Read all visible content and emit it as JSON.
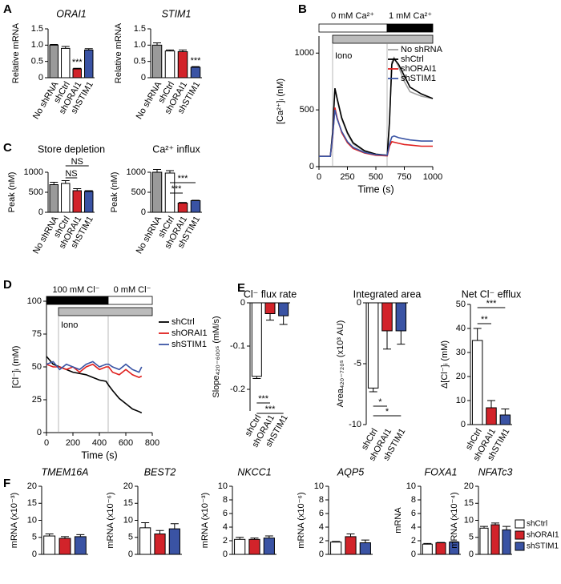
{
  "chart_data": [
    {
      "type": "bar",
      "panel": "A",
      "title": "ORAI1",
      "y_label": "Relative mRNA",
      "categories": [
        "No shRNA",
        "shCtrl",
        "shORAI1",
        "shSTIM1"
      ],
      "values": [
        1.0,
        0.9,
        0.27,
        0.85
      ],
      "errors": [
        0.02,
        0.06,
        0.02,
        0.04
      ],
      "colors": [
        "#9a9a9a",
        "#ffffff",
        "#d2232a",
        "#3a53a4"
      ],
      "ylim": [
        0,
        1.5
      ],
      "yticks": [
        0,
        0.5,
        {
          "value": 1,
          "label": "1.0"
        },
        1.5
      ],
      "annotations": [
        "***"
      ]
    },
    {
      "type": "bar",
      "title": "STIM1",
      "y_label": "Relative mRNA",
      "categories": [
        "No shRNA",
        "shCtrl",
        "shORAI1",
        "shSTIM1"
      ],
      "values": [
        1.0,
        0.82,
        0.8,
        0.32
      ],
      "errors": [
        0.07,
        0.03,
        0.05,
        0.02
      ],
      "colors": [
        "#9a9a9a",
        "#ffffff",
        "#d2232a",
        "#3a53a4"
      ],
      "ylim": [
        0,
        1.5
      ],
      "yticks": [
        0,
        0.5,
        {
          "value": 1,
          "label": "1.0"
        },
        1.5
      ],
      "annotations": [
        "***"
      ]
    },
    {
      "type": "line",
      "panel": "B",
      "x_label": "Time (s)",
      "y_label": "[Ca²⁺]ᵢ (nM)",
      "stimuli": [
        "0 mM Ca²⁺",
        "1 mM Ca²⁺",
        "Iono"
      ],
      "x": [
        0,
        50,
        100,
        120,
        140,
        160,
        200,
        250,
        300,
        400,
        500,
        600,
        620,
        640,
        660,
        700,
        750,
        800,
        900,
        1000
      ],
      "series": [
        {
          "name": "No shRNA",
          "color": "#a0a0a0",
          "values": [
            90,
            90,
            90,
            300,
            680,
            590,
            420,
            290,
            200,
            135,
            105,
            100,
            380,
            920,
            960,
            880,
            750,
            660,
            620,
            600
          ]
        },
        {
          "name": "shCtrl",
          "color": "#000000",
          "values": [
            90,
            90,
            90,
            300,
            690,
            600,
            430,
            300,
            210,
            140,
            110,
            100,
            400,
            900,
            950,
            900,
            800,
            700,
            640,
            600
          ]
        },
        {
          "name": "shORAI1",
          "color": "#e0201e",
          "values": [
            90,
            90,
            90,
            250,
            520,
            430,
            300,
            210,
            160,
            120,
            100,
            95,
            180,
            220,
            215,
            205,
            195,
            190,
            180,
            180
          ]
        },
        {
          "name": "shSTIM1",
          "color": "#3b55a5",
          "values": [
            90,
            90,
            90,
            260,
            500,
            420,
            310,
            220,
            170,
            125,
            105,
            100,
            200,
            260,
            270,
            255,
            245,
            235,
            225,
            225
          ]
        }
      ],
      "xlim": [
        0,
        1000
      ],
      "xticks": [
        0,
        250,
        500,
        750,
        1000
      ],
      "ylim": [
        0,
        1150
      ],
      "yticks": [
        0,
        500,
        1000
      ]
    },
    {
      "type": "bar",
      "panel": "C",
      "title": "Store depletion",
      "y_label": "Peak (nM)",
      "categories": [
        "No shRNA",
        "shCtrl",
        "shORAI1",
        "shSTIM1"
      ],
      "values": [
        690,
        720,
        540,
        520
      ],
      "errors": [
        60,
        70,
        50,
        20
      ],
      "colors": [
        "#9a9a9a",
        "#ffffff",
        "#d2232a",
        "#3a53a4"
      ],
      "ylim": [
        0,
        1000
      ],
      "yticks": [
        0,
        500,
        1000
      ],
      "annotations": [
        "NS",
        "NS"
      ]
    },
    {
      "type": "bar",
      "title": "Ca²⁺ influx",
      "y_label": "Peak (nM)",
      "categories": [
        "No shRNA",
        "shCtrl",
        "shORAI1",
        "shSTIM1"
      ],
      "values": [
        1000,
        980,
        230,
        290
      ],
      "errors": [
        70,
        60,
        15,
        10
      ],
      "colors": [
        "#9a9a9a",
        "#ffffff",
        "#d2232a",
        "#3a53a4"
      ],
      "ylim": [
        0,
        1000
      ],
      "yticks": [
        0,
        500,
        1000
      ],
      "annotations": [
        "***",
        "***"
      ]
    },
    {
      "type": "line",
      "panel": "D",
      "x_label": "Time (s)",
      "y_label": "[Cl⁻]ᵢ (mM)",
      "stimuli": [
        "100 mM Cl⁻",
        "0 mM Cl⁻",
        "Iono"
      ],
      "x": [
        0,
        50,
        100,
        150,
        200,
        250,
        300,
        350,
        400,
        450,
        470,
        500,
        550,
        600,
        650,
        700,
        720
      ],
      "series": [
        {
          "name": "shCtrl",
          "color": "#000000",
          "values": [
            58,
            52,
            50,
            48,
            46,
            45,
            44,
            42,
            40,
            39,
            36,
            32,
            26,
            22,
            18,
            16,
            15
          ]
        },
        {
          "name": "shORAI1",
          "color": "#e0201e",
          "values": [
            52,
            50,
            50,
            48,
            50,
            46,
            50,
            52,
            48,
            50,
            50,
            46,
            44,
            48,
            44,
            42,
            43
          ]
        },
        {
          "name": "shSTIM1",
          "color": "#3b55a5",
          "values": [
            52,
            54,
            48,
            52,
            50,
            48,
            52,
            54,
            50,
            52,
            52,
            50,
            48,
            52,
            48,
            46,
            50
          ]
        }
      ],
      "xlim": [
        0,
        800
      ],
      "xticks": [
        0,
        200,
        400,
        600,
        800
      ],
      "ylim": [
        0,
        100
      ],
      "yticks": [
        0,
        25,
        50,
        75,
        100
      ]
    },
    {
      "type": "bar",
      "panel": "E",
      "title": "Cl⁻ flux rate",
      "y_label": "Slope₄₂₀₋₆₀₀ₛ (mM/s)",
      "categories": [
        "shCtrl",
        "shORAI1",
        "shSTIM1"
      ],
      "values": [
        -0.17,
        -0.025,
        -0.03
      ],
      "errors": [
        0.005,
        0.015,
        0.02
      ],
      "colors": [
        "#ffffff",
        "#d2232a",
        "#3a53a4"
      ],
      "ylim": [
        -0.25,
        0
      ],
      "yticks": [
        -0.2,
        -0.1,
        0
      ],
      "annotations": [
        "***",
        "***"
      ]
    },
    {
      "type": "bar",
      "title": "Integrated area",
      "y_label": "Area₄₂₀₋₇₂₀ₛ (x10³ AU)",
      "categories": [
        "shCtrl",
        "shORAI1",
        "shSTIM1"
      ],
      "values": [
        -7,
        -2.3,
        -2.3
      ],
      "errors": [
        0.3,
        1.5,
        1.1
      ],
      "colors": [
        "#ffffff",
        "#d2232a",
        "#3a53a4"
      ],
      "ylim": [
        -10,
        0
      ],
      "yticks": [
        -10,
        -5,
        0
      ],
      "annotations": [
        "*",
        "*"
      ]
    },
    {
      "type": "bar",
      "title": "Net Cl⁻ efflux",
      "y_label": "Δ[Cl⁻]ᵢ (mM)",
      "categories": [
        "shCtrl",
        "shORAI1",
        "shSTIM1"
      ],
      "values": [
        35,
        7,
        4
      ],
      "errors": [
        5,
        3,
        2.5
      ],
      "colors": [
        "#ffffff",
        "#d2232a",
        "#3a53a4"
      ],
      "ylim": [
        0,
        50
      ],
      "yticks": [
        0,
        10,
        20,
        30,
        40,
        50
      ],
      "annotations": [
        "**",
        "***"
      ]
    },
    {
      "type": "bar",
      "panel": "F",
      "title": "TMEM16A",
      "y_label": "mRNA (x10⁻³)",
      "categories": [
        null,
        null,
        null
      ],
      "values": [
        5.4,
        4.7,
        5.2
      ],
      "errors": [
        0.6,
        0.5,
        0.6
      ],
      "colors": [
        "#ffffff",
        "#d2232a",
        "#3a53a4"
      ],
      "ylim": [
        0,
        20
      ],
      "yticks": [
        0,
        5,
        10,
        15,
        20
      ]
    },
    {
      "type": "bar",
      "title": "BEST2",
      "y_label": "mRNA (x10⁻⁶)",
      "categories": [
        null,
        null,
        null
      ],
      "values": [
        7.8,
        6.0,
        7.5
      ],
      "errors": [
        1.5,
        1.0,
        1.5
      ],
      "colors": [
        "#ffffff",
        "#d2232a",
        "#3a53a4"
      ],
      "ylim": [
        0,
        20
      ],
      "yticks": [
        0,
        5,
        10,
        15,
        20
      ]
    },
    {
      "type": "bar",
      "title": "NKCC1",
      "y_label": "mRNA (x10⁻³)",
      "categories": [
        null,
        null,
        null
      ],
      "values": [
        2.2,
        2.2,
        2.4
      ],
      "errors": [
        0.3,
        0.2,
        0.3
      ],
      "colors": [
        "#ffffff",
        "#d2232a",
        "#3a53a4"
      ],
      "ylim": [
        0,
        10
      ],
      "yticks": [
        0,
        2,
        4,
        6,
        8,
        10
      ]
    },
    {
      "type": "bar",
      "title": "AQP5",
      "y_label": "mRNA (x10⁻⁶)",
      "categories": [
        null,
        null,
        null
      ],
      "values": [
        1.8,
        2.6,
        1.7
      ],
      "errors": [
        0.1,
        0.4,
        0.4
      ],
      "colors": [
        "#ffffff",
        "#d2232a",
        "#3a53a4"
      ],
      "ylim": [
        0,
        10
      ],
      "yticks": [
        0,
        2,
        4,
        6,
        8,
        10
      ]
    },
    {
      "type": "bar",
      "title": "FOXA1",
      "y_label": "mRNA",
      "categories": [
        null,
        null,
        null
      ],
      "values": [
        1.5,
        1.7,
        1.8
      ],
      "errors": [
        0.1,
        0.05,
        0.05
      ],
      "colors": [
        "#ffffff",
        "#d2232a",
        "#3a53a4"
      ],
      "ylim": [
        0,
        10
      ],
      "yticks": [
        0,
        2,
        4,
        6,
        8,
        10
      ]
    },
    {
      "type": "bar",
      "title": "NFATc3",
      "y_label": "mRNA (x10⁻⁴)",
      "series": [
        {
          "name": "shCtrl",
          "color": "#ffffff",
          "values": [
            7.7
          ],
          "errors": [
            0.5
          ]
        },
        {
          "name": "shORAI1",
          "color": "#d2232a",
          "values": [
            8.7
          ],
          "errors": [
            0.5
          ]
        },
        {
          "name": "shSTIM1",
          "color": "#3a53a4",
          "values": [
            7.2
          ],
          "errors": [
            1.0
          ]
        }
      ],
      "ylim": [
        0,
        20
      ],
      "yticks": [
        0,
        5,
        10,
        15,
        20
      ]
    }
  ]
}
